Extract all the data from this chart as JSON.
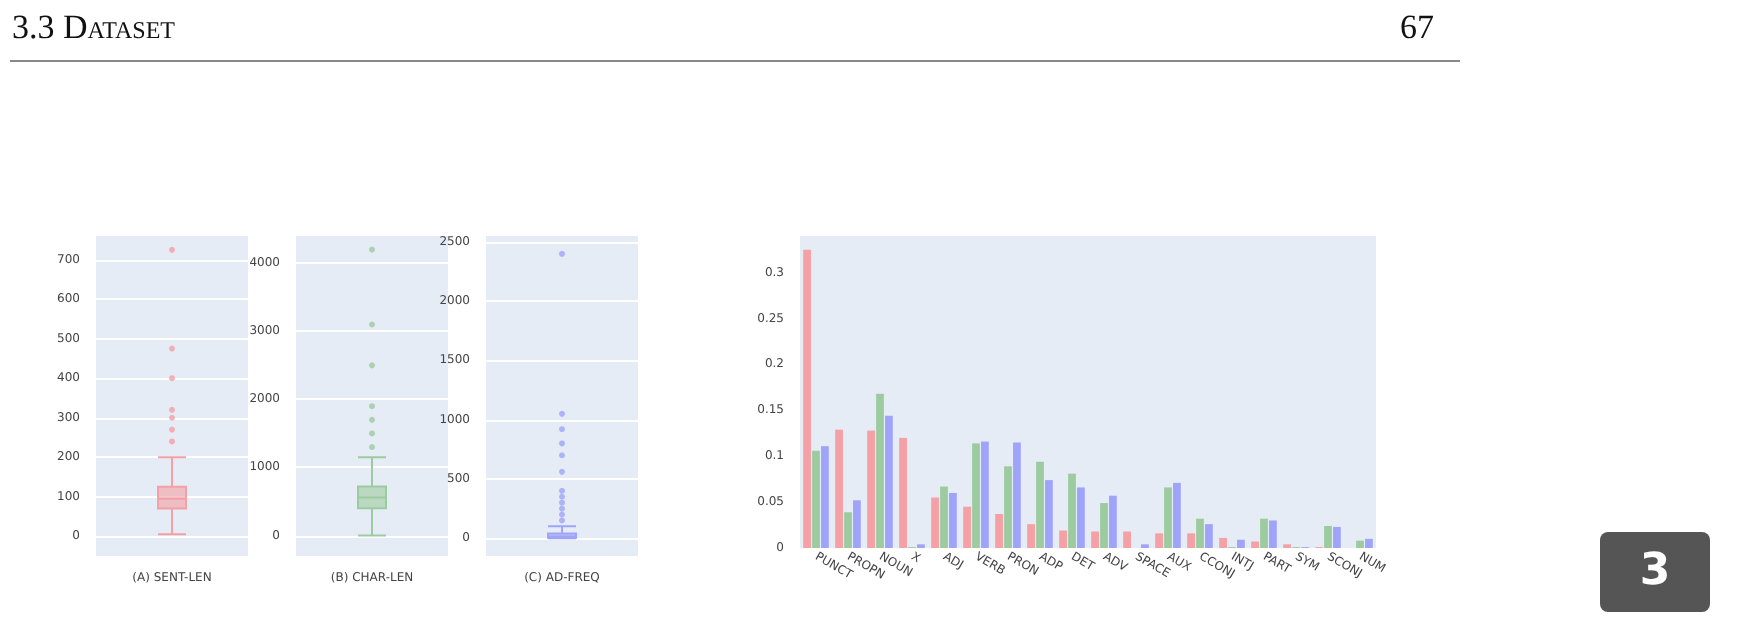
{
  "chart_data": [
    {
      "type": "box",
      "categories": [
        "(A) SENT-LEN"
      ],
      "color": "#f4a0a5",
      "grid": "y",
      "ylim": [
        -50,
        760
      ],
      "yticks": [
        0,
        100,
        200,
        300,
        400,
        500,
        600,
        700
      ],
      "boxes": [
        {
          "low": 5,
          "q1": 70,
          "median": 95,
          "q3": 125,
          "high": 200,
          "outliers": [
            240,
            270,
            300,
            320,
            400,
            475,
            725
          ]
        }
      ]
    },
    {
      "type": "box",
      "categories": [
        "(B) CHAR-LEN"
      ],
      "color": "#9dcba0",
      "grid": "y",
      "ylim": [
        -300,
        4400
      ],
      "yticks": [
        0,
        1000,
        2000,
        3000,
        4000
      ],
      "boxes": [
        {
          "low": 0,
          "q1": 400,
          "median": 560,
          "q3": 720,
          "high": 1150,
          "outliers": [
            1300,
            1500,
            1700,
            1900,
            2500,
            3100,
            4200
          ]
        }
      ]
    },
    {
      "type": "box",
      "categories": [
        "(C) AD-FREQ"
      ],
      "color": "#a0a4f8",
      "grid": "y",
      "ylim": [
        -150,
        2550
      ],
      "yticks": [
        0,
        500,
        1000,
        1500,
        2000,
        2500
      ],
      "boxes": [
        {
          "low": 0,
          "q1": 5,
          "median": 15,
          "q3": 40,
          "high": 100,
          "outliers": [
            150,
            200,
            250,
            300,
            350,
            400,
            560,
            700,
            800,
            920,
            1050,
            2400
          ]
        }
      ]
    },
    {
      "type": "bar",
      "grid": false,
      "ylim": [
        0,
        0.34
      ],
      "yticks": [
        0,
        0.05,
        0.1,
        0.15,
        0.2,
        0.25,
        0.3
      ],
      "categories": [
        "PUNCT",
        "PROPN",
        "NOUN",
        "X",
        "ADJ",
        "VERB",
        "PRON",
        "ADP",
        "DET",
        "ADV",
        "SPACE",
        "AUX",
        "CCONJ",
        "INTJ",
        "PART",
        "SYM",
        "SCONJ",
        "NUM"
      ],
      "series": [
        {
          "color": "#f4a0a5",
          "values": [
            0.325,
            0.129,
            0.128,
            0.12,
            0.055,
            0.045,
            0.037,
            0.026,
            0.019,
            0.018,
            0.018,
            0.016,
            0.016,
            0.011,
            0.007,
            0.004,
            0.001,
            null
          ]
        },
        {
          "color": "#9dcba0",
          "values": [
            0.106,
            0.039,
            0.168,
            0.001,
            0.067,
            0.114,
            0.089,
            0.094,
            0.081,
            0.049,
            null,
            0.066,
            0.032,
            0.001,
            0.032,
            0.001,
            0.024,
            0.008
          ]
        },
        {
          "color": "#a0a4f8",
          "values": [
            0.111,
            0.052,
            0.144,
            0.004,
            0.06,
            0.116,
            0.115,
            0.074,
            0.066,
            0.057,
            0.004,
            0.071,
            0.026,
            0.009,
            0.03,
            0.001,
            0.023,
            0.01
          ]
        }
      ]
    },
    {
      "type": "other",
      "annotations": [
        "3.3 Dataset",
        "67",
        "3"
      ]
    }
  ]
}
